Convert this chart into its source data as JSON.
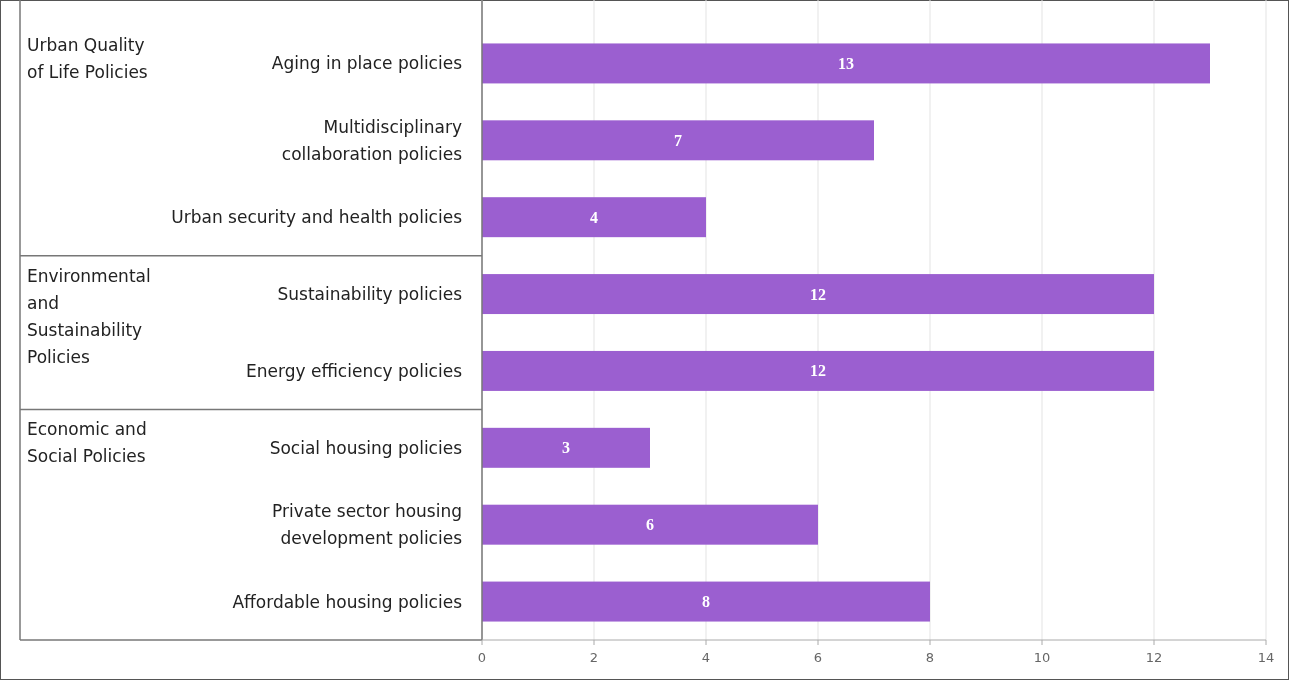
{
  "chart_data": {
    "type": "bar",
    "orientation": "horizontal",
    "categories": [
      "Aging in place policies",
      "Multidisciplinary\ncollaboration policies",
      "Urban security and health policies",
      "Sustainability policies",
      "Energy efficiency policies",
      "Social housing policies",
      "Private sector housing\ndevelopment policies",
      "Affordable housing policies"
    ],
    "values": [
      13,
      7,
      4,
      12,
      12,
      3,
      6,
      8
    ],
    "color": "#9b5fd0",
    "data_labels": true,
    "xlim": [
      0,
      14
    ],
    "xticks": [
      0,
      2,
      4,
      6,
      8,
      10,
      12,
      14
    ],
    "grid": "x",
    "annotations": [
      "Urban Quality\nof Life Policies",
      "Environmental\nand\nSustainability\nPolicies",
      "Economic and\nSocial Policies"
    ]
  }
}
